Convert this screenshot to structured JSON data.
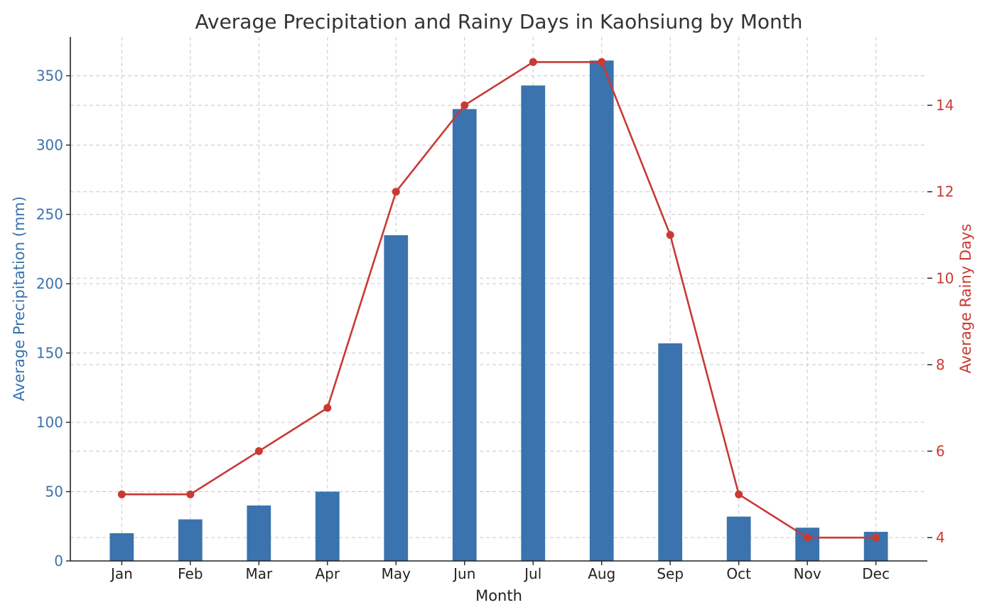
{
  "chart_data": {
    "type": "bar+line",
    "title": "Average Precipitation and Rainy Days in Kaohsiung by Month",
    "xlabel": "Month",
    "ylabel_left": "Average Precipitation (mm)",
    "ylabel_right": "Average Rainy Days",
    "categories": [
      "Jan",
      "Feb",
      "Mar",
      "Apr",
      "May",
      "Jun",
      "Jul",
      "Aug",
      "Sep",
      "Oct",
      "Nov",
      "Dec"
    ],
    "series": [
      {
        "name": "Average Precipitation (mm)",
        "type": "bar",
        "axis": "left",
        "values": [
          20,
          30,
          40,
          50,
          235,
          326,
          343,
          361,
          157,
          32,
          24,
          21
        ]
      },
      {
        "name": "Average Rainy Days",
        "type": "line",
        "axis": "right",
        "values": [
          5,
          5,
          6,
          7,
          12,
          14,
          15,
          15,
          11,
          5,
          4,
          4
        ]
      }
    ],
    "ylim_left": [
      0,
      378
    ],
    "ylim_right": [
      3.46,
      15.58
    ],
    "yticks_left": [
      0,
      50,
      100,
      150,
      200,
      250,
      300,
      350
    ],
    "yticks_right": [
      4,
      6,
      8,
      10,
      12,
      14
    ],
    "grid": true,
    "colors": {
      "bar": "#3a73ae",
      "line": "#c83a34"
    }
  }
}
